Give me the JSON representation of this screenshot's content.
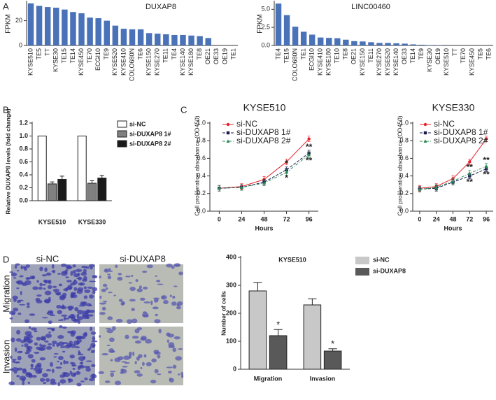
{
  "panels": [
    "A",
    "B",
    "C",
    "D"
  ],
  "images": {
    "columns": [
      "si-NC",
      "si-DUXAP8"
    ],
    "rows": [
      "Migration",
      "Invasion"
    ]
  },
  "chart_data": [
    {
      "type": "bar",
      "title": "DUXAP8",
      "ylabel": "FPKM",
      "color": "#4a72b8",
      "categories": [
        "KYSE510",
        "TE5",
        "TT",
        "KYSE30",
        "TE15",
        "TE14",
        "KYSE450",
        "TE70",
        "ECGI10",
        "TE9",
        "KYSE520",
        "KYSE410",
        "COLO680N",
        "TE6",
        "KYSE150",
        "KYSE270",
        "TE11",
        "TE4",
        "KYSE140",
        "KYSE180",
        "TE8",
        "OE21",
        "OE33",
        "OE19",
        "TE1"
      ],
      "values": [
        34,
        32,
        31,
        30.5,
        29,
        27,
        26,
        22.5,
        22,
        20,
        16,
        13.5,
        13,
        13,
        10,
        9.5,
        9,
        8.5,
        8.5,
        8,
        7.5,
        6,
        0,
        0,
        0
      ],
      "ylim": [
        0,
        35
      ],
      "yticks": [
        0,
        20
      ]
    },
    {
      "type": "bar",
      "title": "LINC00460",
      "ylabel": "FPKM",
      "color": "#4a72b8",
      "categories": [
        "TE4",
        "TE15",
        "COLO680N",
        "TE1",
        "ECGI10",
        "KYSE410",
        "KYSE180",
        "TE10",
        "TE8",
        "OE21",
        "KYSE150",
        "TE11",
        "KYSE270",
        "KYSE520",
        "KYSE140",
        "OE33",
        "TE14",
        "TE9",
        "KYSE30",
        "OE19",
        "KYSE510",
        "TT",
        "TE70",
        "KYSE450",
        "TE5",
        "TE6"
      ],
      "values": [
        5.8,
        4.2,
        2.6,
        1.9,
        1.5,
        1.1,
        1.05,
        1.0,
        0.8,
        0.6,
        0.55,
        0.45,
        0.35,
        0.35,
        0.3,
        0.25,
        0.15,
        0.1,
        0.05,
        0.05,
        0,
        0,
        0,
        0,
        0,
        0
      ],
      "ylim": [
        0,
        6
      ],
      "yticks": [
        {
          "value": 0,
          "label": "0.0"
        },
        2.5,
        {
          "value": 5,
          "label": "5.0"
        }
      ]
    },
    {
      "type": "bar",
      "ylabel": "Relative DUXAP8 levels (fold change)",
      "categories": [
        "KYSE510",
        "KYSE330"
      ],
      "series": [
        {
          "name": "si-NC",
          "color": "#ffffff",
          "values": [
            1,
            1
          ],
          "errors": [
            0,
            0
          ]
        },
        {
          "name": "si-DUXAP8 1#",
          "color": "#808080",
          "values": [
            0.26,
            0.27
          ],
          "errors": [
            0.03,
            0.04
          ]
        },
        {
          "name": "si-DUXAP8 2#",
          "color": "#1a1a1a",
          "values": [
            0.33,
            0.35
          ],
          "errors": [
            0.05,
            0.04
          ]
        }
      ],
      "ylim": [
        0,
        1.2
      ],
      "yticks": [
        {
          "value": 0,
          "label": "0.0"
        },
        0.2,
        0.4,
        0.6,
        0.8,
        {
          "value": 1,
          "label": "1.0"
        },
        1.2
      ]
    },
    {
      "type": "line",
      "title": "KYSE510",
      "xlabel": "Hours",
      "ylabel": "Cell proliferation absorbance (OD450)",
      "x": [
        0,
        24,
        48,
        72,
        96
      ],
      "series": [
        {
          "name": "si-NC",
          "color": "#e8212a",
          "values": [
            0.26,
            0.28,
            0.36,
            0.56,
            0.82
          ]
        },
        {
          "name": "si-DUXAP8 1#",
          "color": "#1a1a4e",
          "values": [
            0.26,
            0.27,
            0.33,
            0.47,
            0.66
          ]
        },
        {
          "name": "si-DUXAP8 2#",
          "color": "#2e8b57",
          "values": [
            0.26,
            0.27,
            0.32,
            0.44,
            0.64
          ]
        }
      ],
      "annotations": [
        "*",
        "*",
        "**",
        "**"
      ],
      "xlim": [
        -10,
        106
      ],
      "xticks": [
        0,
        24,
        48,
        72,
        96
      ],
      "ylim": [
        0,
        1
      ],
      "yticks": [
        {
          "value": 0,
          "label": "0.0"
        },
        0.2,
        0.4,
        0.6,
        0.8,
        {
          "value": 1,
          "label": "1.0"
        }
      ]
    },
    {
      "type": "line",
      "title": "KYSE330",
      "xlabel": "Hours",
      "ylabel": "Cell proliferation absorbance (OD450)",
      "x": [
        0,
        24,
        48,
        72,
        96
      ],
      "series": [
        {
          "name": "si-NC",
          "color": "#e8212a",
          "values": [
            0.26,
            0.28,
            0.37,
            0.56,
            0.82
          ]
        },
        {
          "name": "si-DUXAP8 1#",
          "color": "#1a1a4e",
          "values": [
            0.25,
            0.26,
            0.33,
            0.4,
            0.48
          ]
        },
        {
          "name": "si-DUXAP8 2#",
          "color": "#2e8b57",
          "values": [
            0.25,
            0.27,
            0.34,
            0.43,
            0.51
          ]
        }
      ],
      "annotations": [
        "**",
        "**",
        "**",
        "**"
      ],
      "xlim": [
        -10,
        106
      ],
      "xticks": [
        0,
        24,
        48,
        72,
        96
      ],
      "ylim": [
        0,
        1
      ],
      "yticks": [
        {
          "value": 0,
          "label": "0.0"
        },
        0.2,
        0.4,
        0.6,
        0.8,
        {
          "value": 1,
          "label": "1.0"
        }
      ]
    },
    {
      "type": "bar",
      "title": "KYSE510",
      "ylabel": "Number of cells",
      "categories": [
        "Migration",
        "Invasion"
      ],
      "series": [
        {
          "name": "si-NC",
          "color": "#c8c8c8",
          "values": [
            280,
            230
          ],
          "errors": [
            30,
            22
          ]
        },
        {
          "name": "si-DUXAP8",
          "color": "#595959",
          "values": [
            120,
            65
          ],
          "errors": [
            22,
            8
          ]
        }
      ],
      "annotations": [
        "*",
        "*"
      ],
      "ylim": [
        0,
        400
      ],
      "yticks": [
        0,
        100,
        200,
        300,
        400
      ]
    }
  ]
}
